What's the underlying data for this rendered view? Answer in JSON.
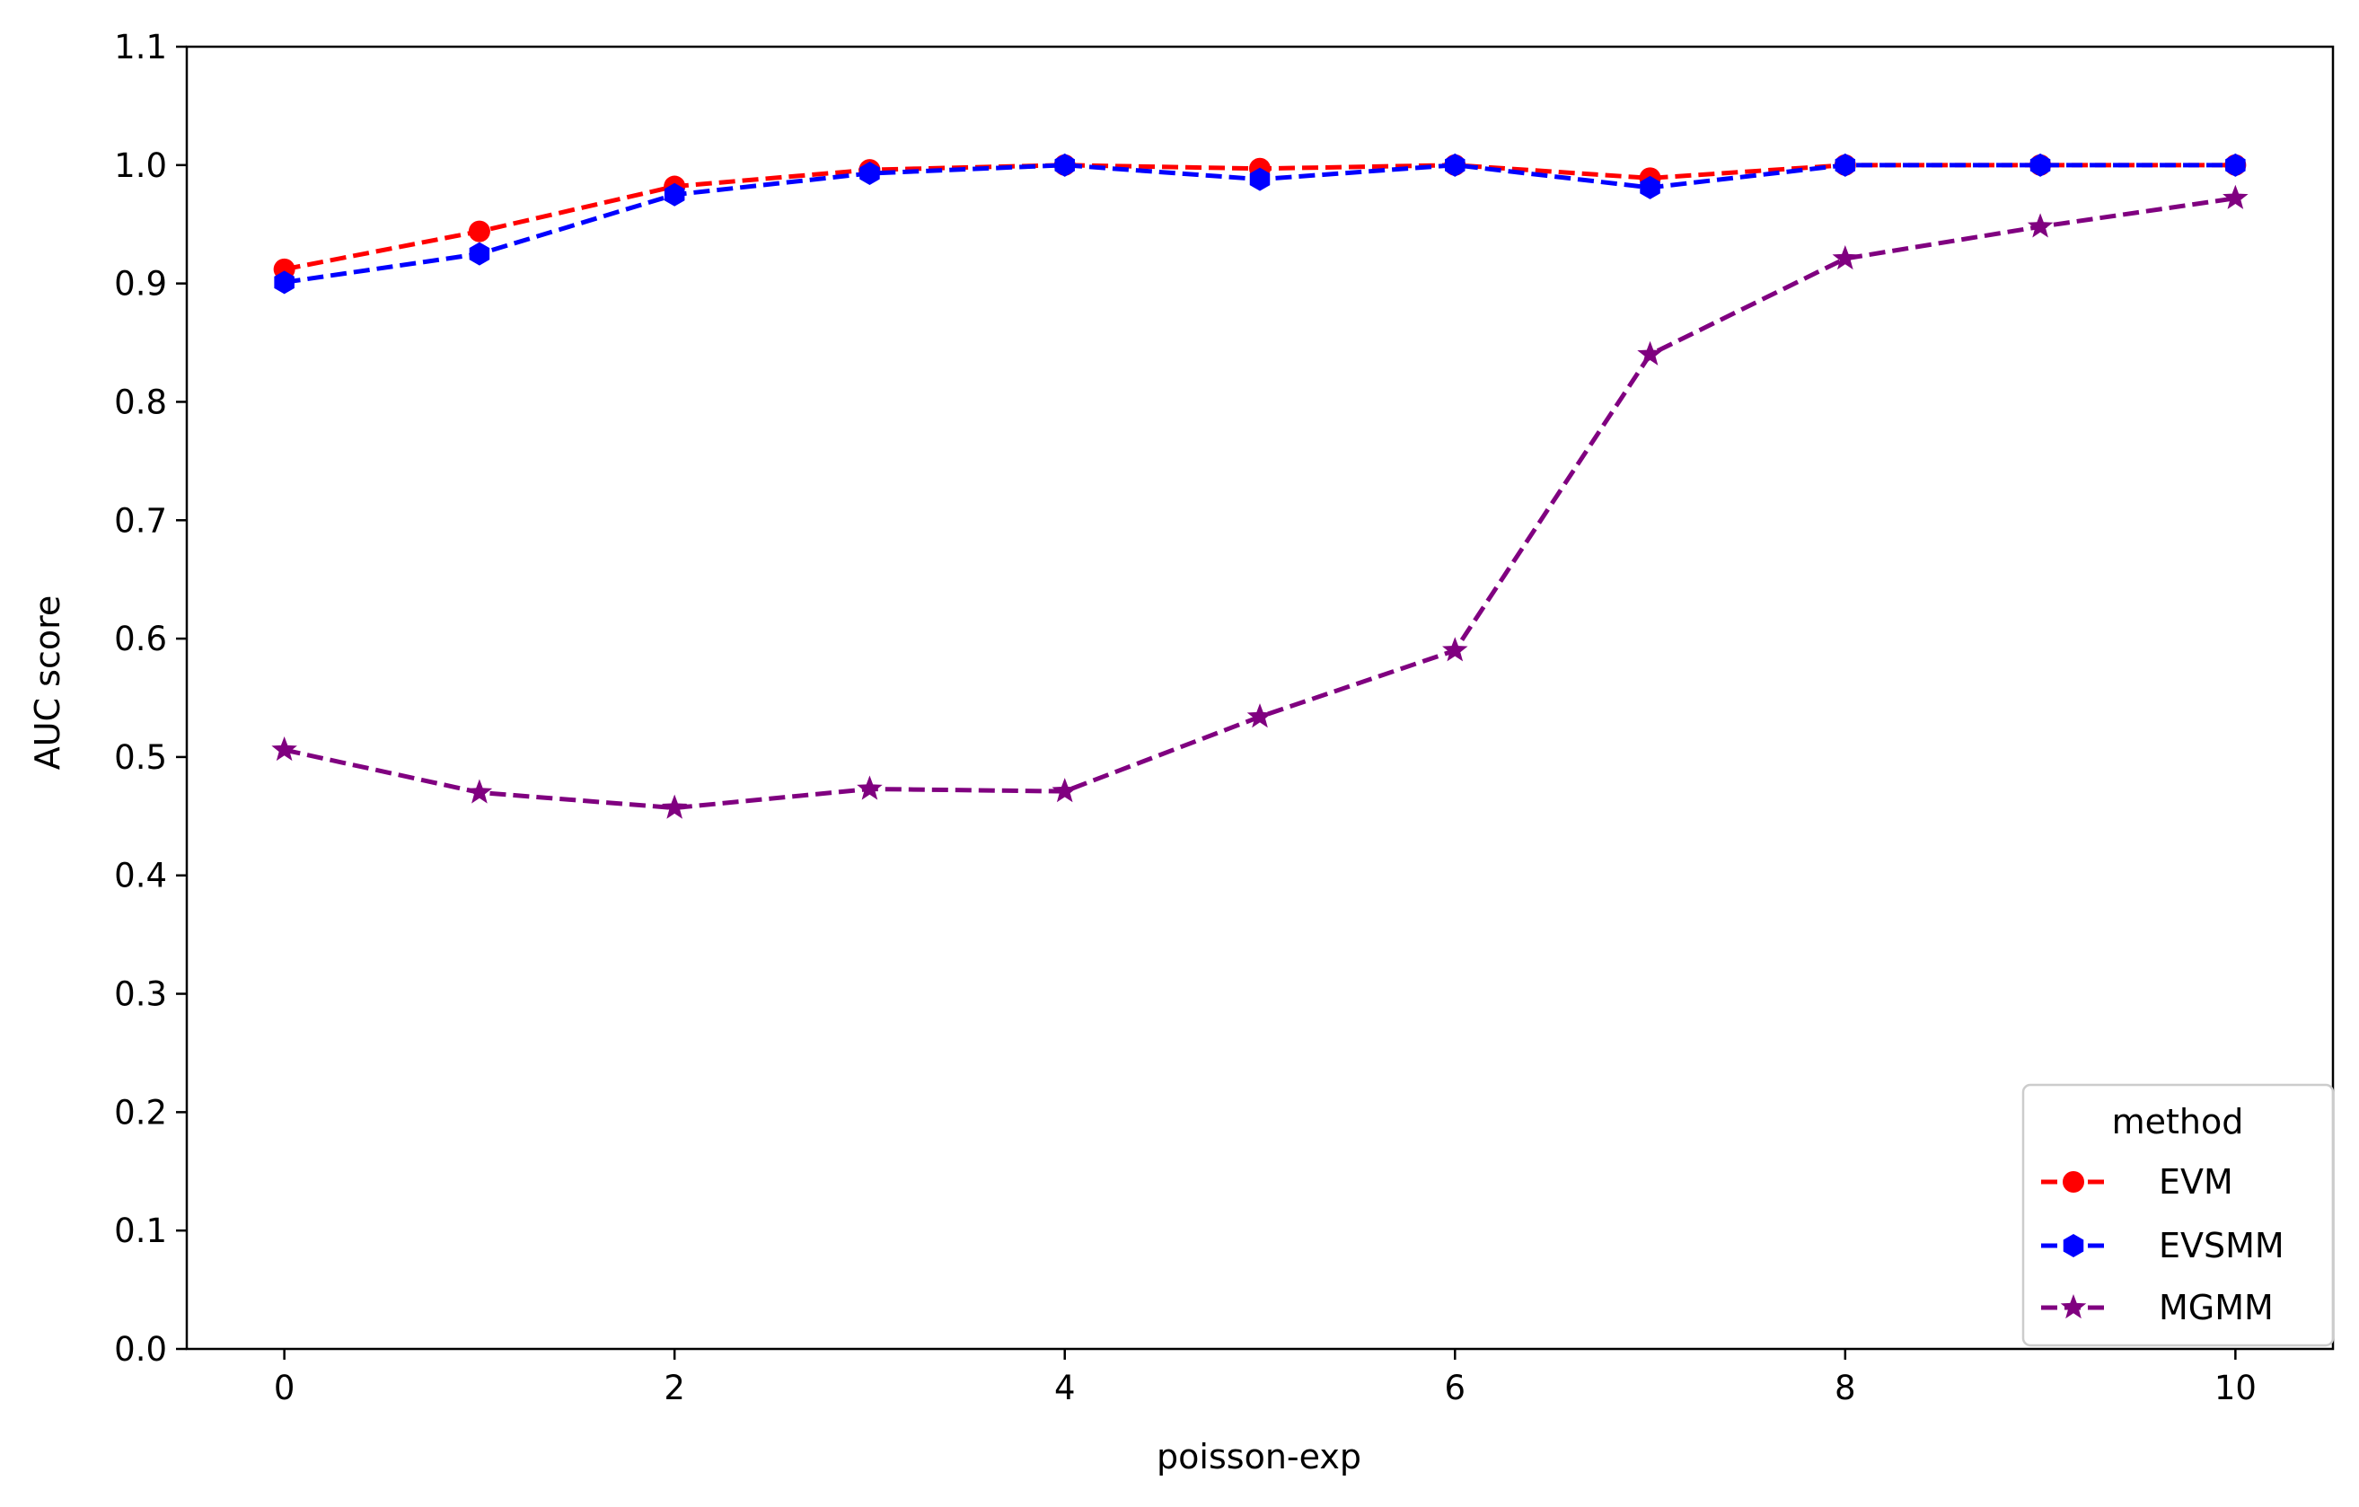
{
  "chart_data": {
    "type": "line",
    "title": "",
    "xlabel": "poisson-exp",
    "ylabel": "AUC score",
    "x": [
      0,
      1,
      2,
      3,
      4,
      5,
      6,
      7,
      8,
      9,
      10
    ],
    "xlim": [
      -0.5,
      10.5
    ],
    "ylim": [
      0.0,
      1.1
    ],
    "xticks": [
      0,
      2,
      4,
      6,
      8,
      10
    ],
    "xtick_labels": [
      "0",
      "2",
      "4",
      "6",
      "8",
      "10"
    ],
    "yticks": [
      0.0,
      0.1,
      0.2,
      0.3,
      0.4,
      0.5,
      0.6,
      0.7,
      0.8,
      0.9,
      1.0,
      1.1
    ],
    "ytick_labels": [
      "0.0",
      "0.1",
      "0.2",
      "0.3",
      "0.4",
      "0.5",
      "0.6",
      "0.7",
      "0.8",
      "0.9",
      "1.0",
      "1.1"
    ],
    "grid": false,
    "legend": {
      "title": "method",
      "placement": "lower-right"
    },
    "series": [
      {
        "name": "EVM",
        "color": "#ff0000",
        "marker": "circle",
        "line_style": "dashed",
        "values": [
          0.912,
          0.944,
          0.982,
          0.996,
          1.0,
          0.997,
          1.0,
          0.989,
          1.0,
          1.0,
          1.0
        ]
      },
      {
        "name": "EVSMM",
        "color": "#0000ff",
        "marker": "hexagon",
        "line_style": "dashed",
        "values": [
          0.901,
          0.925,
          0.975,
          0.993,
          1.0,
          0.988,
          1.0,
          0.981,
          1.0,
          1.0,
          1.0
        ]
      },
      {
        "name": "MGMM",
        "color": "#800080",
        "marker": "star",
        "line_style": "dashed",
        "values": [
          0.506,
          0.47,
          0.457,
          0.473,
          0.471,
          0.534,
          0.59,
          0.84,
          0.921,
          0.948,
          0.972
        ]
      }
    ]
  }
}
